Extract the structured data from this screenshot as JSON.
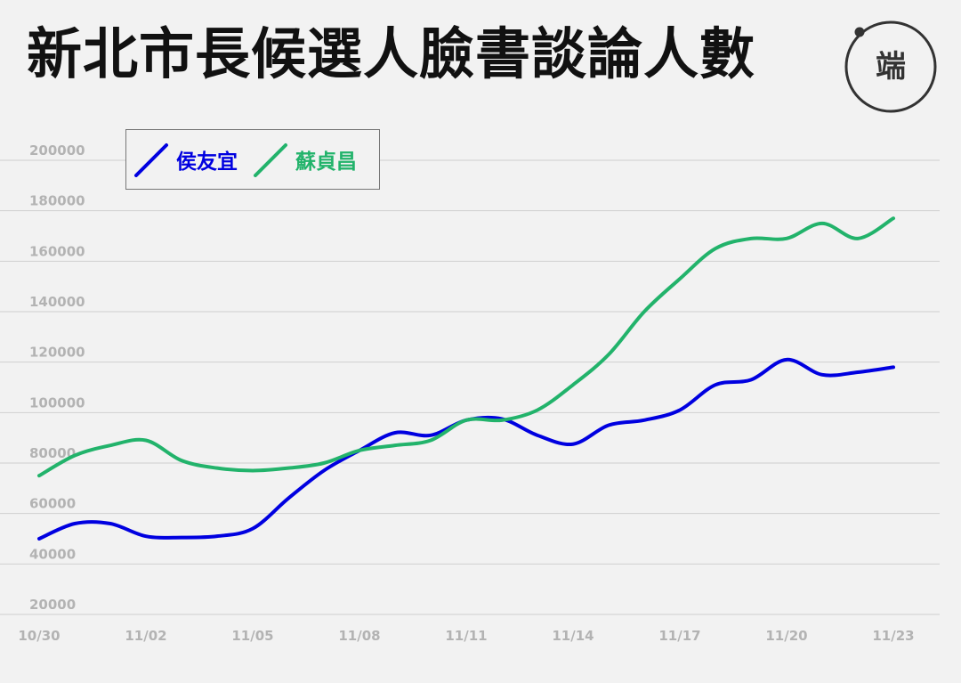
{
  "title": "新北市長候選人臉書談論人數",
  "logo_text": "端",
  "colors": {
    "侯友宜": "#0000e0",
    "蘇貞昌": "#22b36b",
    "grid": "#cfcfcf",
    "tick": "#b3b3b3"
  },
  "chart_data": {
    "type": "line",
    "title": "新北市長候選人臉書談論人數",
    "x": [
      "10/30",
      "10/31",
      "11/01",
      "11/02",
      "11/03",
      "11/04",
      "11/05",
      "11/06",
      "11/07",
      "11/08",
      "11/09",
      "11/10",
      "11/11",
      "11/12",
      "11/13",
      "11/14",
      "11/15",
      "11/16",
      "11/17",
      "11/18",
      "11/19",
      "11/20",
      "11/21",
      "11/22",
      "11/23"
    ],
    "x_tick_labels": [
      "10/30",
      "11/02",
      "11/05",
      "11/08",
      "11/11",
      "11/14",
      "11/17",
      "11/20",
      "11/23"
    ],
    "ylim": [
      20000,
      200000
    ],
    "y_ticks": [
      20000,
      40000,
      60000,
      80000,
      100000,
      120000,
      140000,
      160000,
      180000,
      200000
    ],
    "grid": true,
    "legend_position": "top-left",
    "series": [
      {
        "name": "侯友宜",
        "color": "#0000e0",
        "values": [
          50000,
          56000,
          56000,
          51000,
          50500,
          51000,
          54000,
          66000,
          77000,
          85000,
          92000,
          91000,
          97000,
          97500,
          91000,
          87500,
          95000,
          97000,
          101000,
          111000,
          113000,
          121000,
          115000,
          116000,
          118000
        ]
      },
      {
        "name": "蘇貞昌",
        "color": "#22b36b",
        "values": [
          75000,
          83000,
          87000,
          89000,
          81000,
          78000,
          77000,
          78000,
          80000,
          85000,
          87000,
          89000,
          97000,
          97000,
          101000,
          111000,
          123000,
          140000,
          153000,
          165000,
          169000,
          169000,
          175000,
          169000,
          177000
        ]
      }
    ]
  }
}
